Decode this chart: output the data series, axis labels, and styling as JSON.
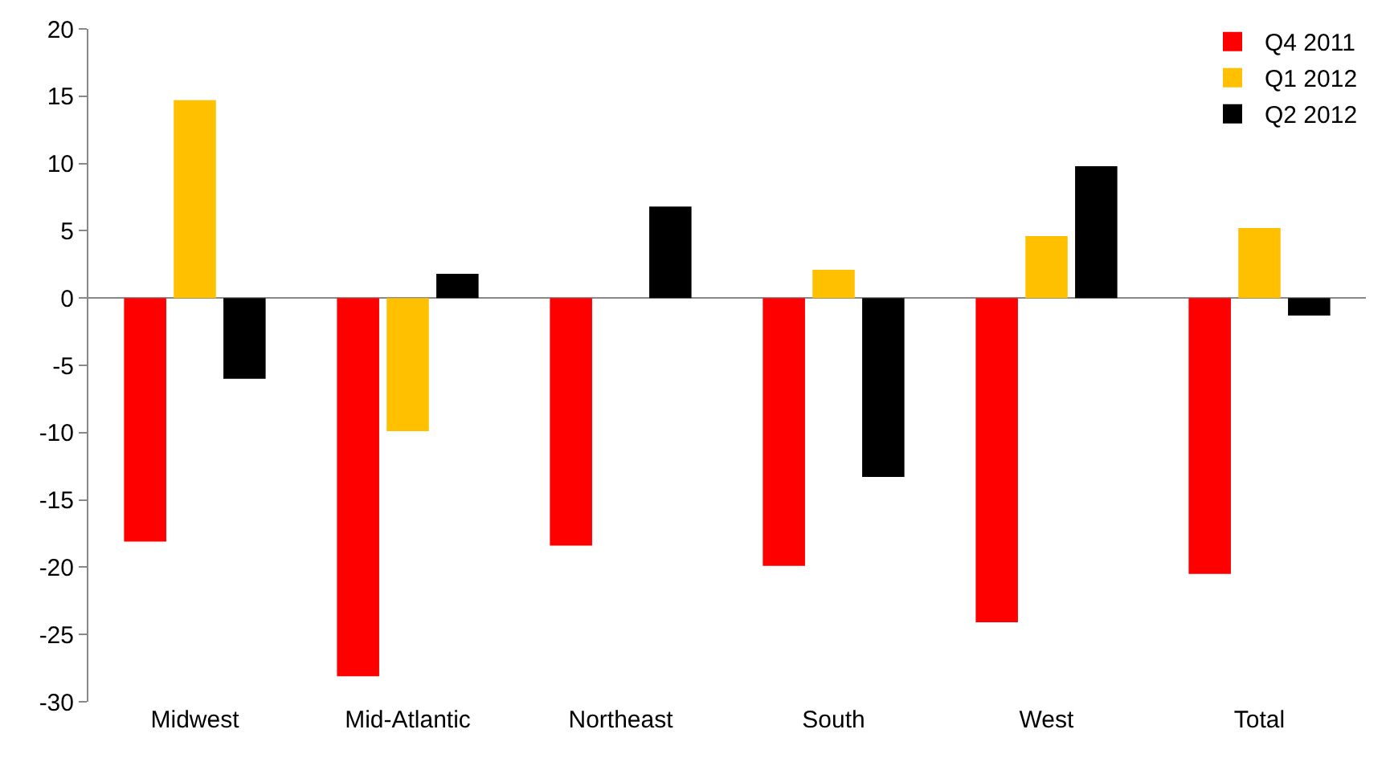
{
  "chart_data": {
    "type": "bar",
    "categories": [
      "Midwest",
      "Mid-Atlantic",
      "Northeast",
      "South",
      "West",
      "Total"
    ],
    "series": [
      {
        "name": "Q4 2011",
        "color": "#ff0000",
        "values": [
          -18.1,
          -28.1,
          -18.4,
          -19.9,
          -24.1,
          -20.5
        ]
      },
      {
        "name": "Q1 2012",
        "color": "#ffc000",
        "values": [
          14.7,
          -9.9,
          0,
          2.1,
          4.6,
          5.2
        ]
      },
      {
        "name": "Q2 2012",
        "color": "#000000",
        "values": [
          -6,
          1.8,
          6.8,
          -13.3,
          9.8,
          -1.3
        ]
      }
    ],
    "ylim": [
      -30,
      20
    ],
    "yticks": [
      -30,
      -25,
      -20,
      -15,
      -10,
      -5,
      0,
      5,
      10,
      15,
      20
    ],
    "legend": "top right"
  }
}
